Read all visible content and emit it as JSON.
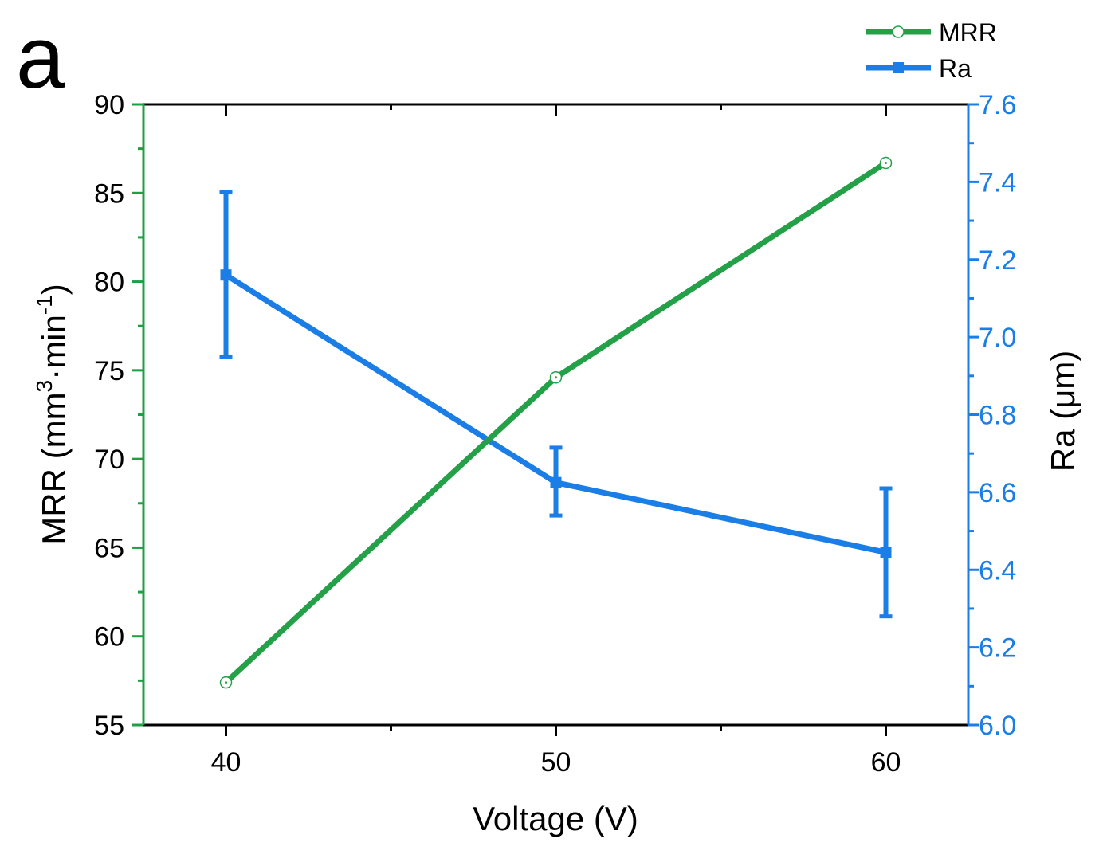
{
  "panel_label": "a",
  "chart_data": {
    "type": "line",
    "xlabel": "Voltage (V)",
    "x": [
      40,
      50,
      60
    ],
    "xlim": [
      37.5,
      62.5
    ],
    "xticks": [
      40,
      50,
      60
    ],
    "xtick_labels": [
      "40",
      "50",
      "60"
    ],
    "y_left": {
      "label_main": "MRR (mm",
      "label_sup1": "3",
      "label_mid": "·min",
      "label_sup2": "-1",
      "label_end": ")",
      "lim": [
        55,
        90
      ],
      "ticks": [
        55,
        60,
        65,
        70,
        75,
        80,
        85,
        90
      ],
      "tick_labels": [
        "55",
        "60",
        "65",
        "70",
        "75",
        "80",
        "85",
        "90"
      ],
      "color": "#1f9e44"
    },
    "y_right": {
      "label": "Ra (μm)",
      "lim": [
        6.0,
        7.6
      ],
      "ticks": [
        6.0,
        6.2,
        6.4,
        6.6,
        6.8,
        7.0,
        7.2,
        7.4,
        7.6
      ],
      "tick_labels": [
        "6.0",
        "6.2",
        "6.4",
        "6.6",
        "6.8",
        "7.0",
        "7.2",
        "7.4",
        "7.6"
      ],
      "color": "#1a7ee6"
    },
    "series": [
      {
        "name": "MRR",
        "axis": "left",
        "color": "#24a148",
        "marker": "open-circle",
        "values": [
          57.4,
          74.6,
          86.7
        ]
      },
      {
        "name": "Ra",
        "axis": "right",
        "color": "#1a7ee6",
        "marker": "filled-square",
        "values": [
          7.16,
          6.625,
          6.445
        ],
        "error_low": [
          6.95,
          6.54,
          6.28
        ],
        "error_high": [
          7.375,
          6.715,
          6.61
        ]
      }
    ],
    "legend": {
      "placement": "top-right",
      "entries": [
        "MRR",
        "Ra"
      ]
    }
  }
}
